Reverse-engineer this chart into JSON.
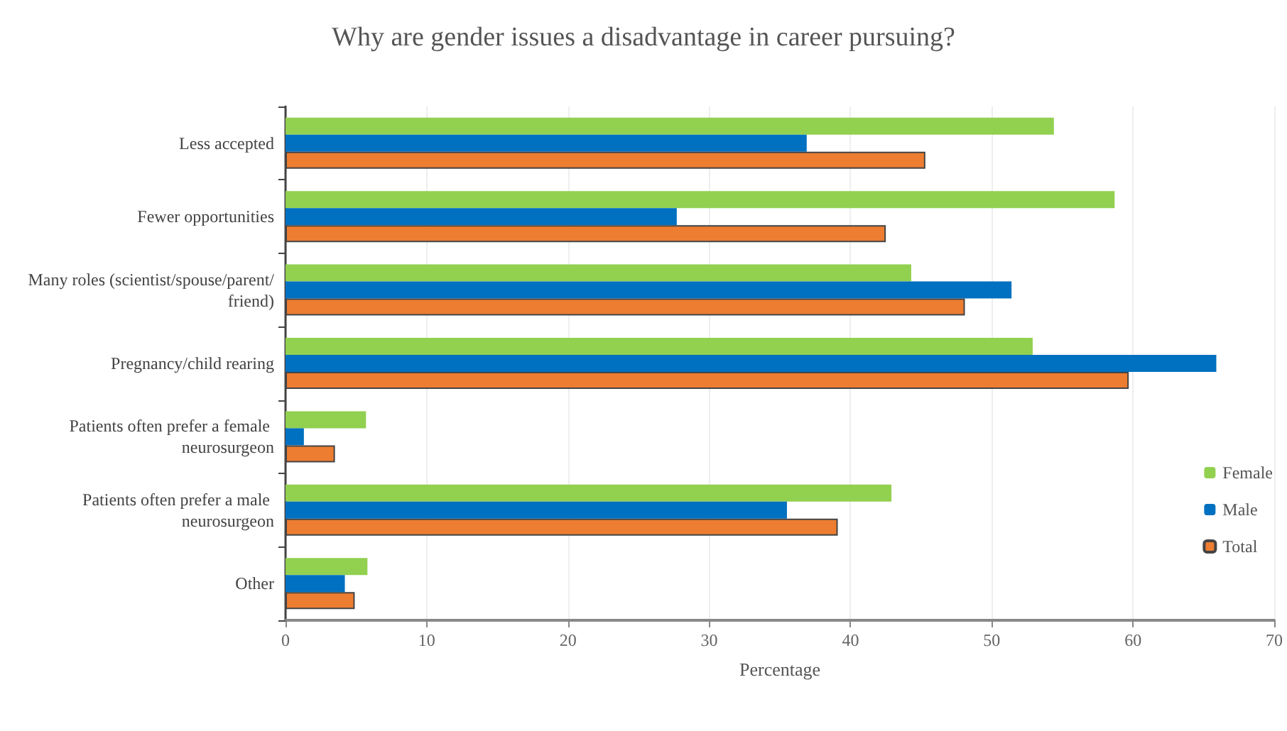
{
  "chart_data": {
    "type": "bar",
    "orientation": "horizontal",
    "title": "Why are gender issues a disadvantage in career pursuing?",
    "xlabel": "Percentage",
    "categories": [
      "Less accepted",
      "Fewer opportunities",
      "Many roles (scientist/spouse/parent/friend)",
      "Pregnancy/child rearing",
      "Patients often prefer a female neurosurgeon",
      "Patients often prefer a male neurosurgeon",
      "Other"
    ],
    "series": [
      {
        "name": "Female",
        "color": "#92d050",
        "values": [
          54.4,
          58.7,
          44.3,
          52.9,
          5.7,
          42.9,
          5.8
        ]
      },
      {
        "name": "Male",
        "color": "#0070c0",
        "values": [
          36.9,
          27.7,
          51.4,
          65.9,
          1.3,
          35.5,
          4.2
        ]
      },
      {
        "name": "Total",
        "color": "#ed7d31",
        "values": [
          45.3,
          42.5,
          48.1,
          59.7,
          3.5,
          39.1,
          4.9
        ]
      }
    ],
    "xlim": [
      0,
      70
    ],
    "xticks": [
      0,
      10,
      20,
      30,
      40,
      50,
      60,
      70
    ],
    "grid": "x",
    "legend": "right"
  }
}
